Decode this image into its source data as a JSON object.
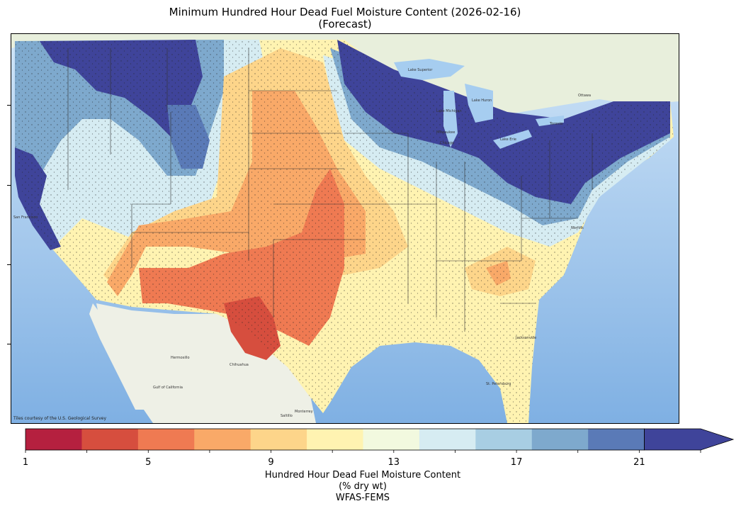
{
  "title_line1": "Minimum Hundred Hour Dead Fuel Moisture Content (2026-02-16)",
  "title_line2": "(Forecast)",
  "tile_credit": "Tiles courtesy of the U.S. Geological Survey",
  "map_labels": [
    {
      "text": "Hermosillo"
    },
    {
      "text": "Chihuahua"
    },
    {
      "text": "Gulf of California"
    },
    {
      "text": "Monterrey"
    },
    {
      "text": "Saltillo"
    },
    {
      "text": "Ottawa"
    },
    {
      "text": "Toronto"
    },
    {
      "text": "Milwaukee"
    },
    {
      "text": "Chicago"
    },
    {
      "text": "Lake Superior"
    },
    {
      "text": "Lake Huron"
    },
    {
      "text": "Lake Michigan"
    },
    {
      "text": "Lake Erie"
    },
    {
      "text": "St. Petersburg"
    },
    {
      "text": "Jacksonville"
    },
    {
      "text": "Norfolk"
    },
    {
      "text": "San Francisco"
    }
  ],
  "colorbar": {
    "tick_labels": [
      "1",
      "5",
      "9",
      "13",
      "17",
      "21"
    ],
    "tick_values": [
      1,
      5,
      9,
      13,
      17,
      21
    ],
    "range": [
      1,
      23
    ],
    "extend": "max",
    "colors": [
      "#b5203f",
      "#d64e3e",
      "#ef7a52",
      "#f9a968",
      "#fdd58a",
      "#fff3b1",
      "#f2f9df",
      "#d6ecf2",
      "#a8cee3",
      "#7ea9cd",
      "#5a7ab7",
      "#3f449a"
    ],
    "label_line1": "Hundred Hour Dead Fuel Moisture Content",
    "label_line2": "(% dry wt)",
    "label_line3": "WFAS-FEMS"
  }
}
